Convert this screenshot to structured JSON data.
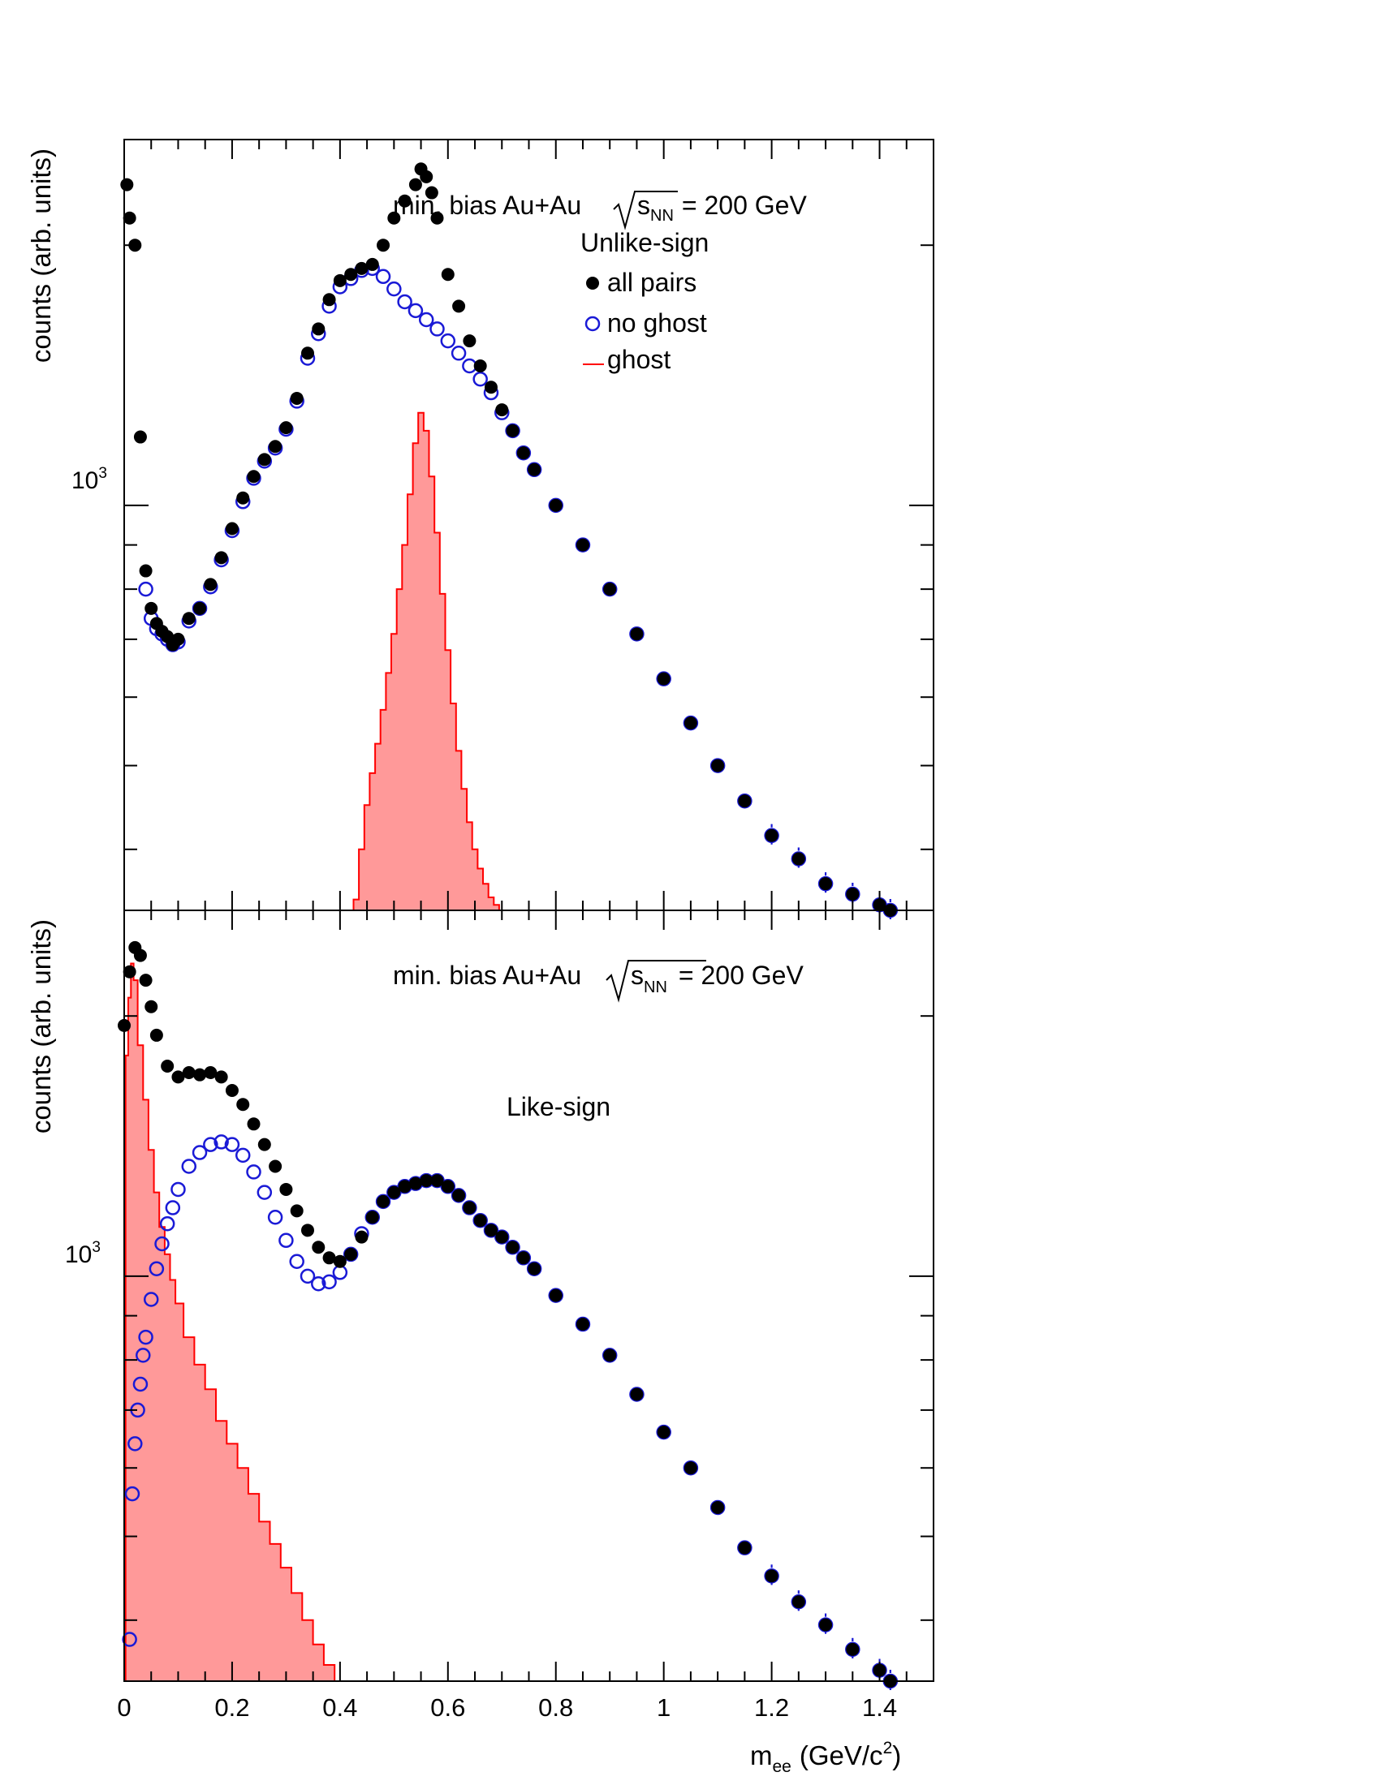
{
  "figure": {
    "xlabel_main": "m",
    "xlabel_sub": "ee",
    "xlabel_unit_pre": "(GeV/c",
    "xlabel_unit_sup": "2",
    "xlabel_unit_post": ")",
    "x_ticks": [
      "0",
      "0.2",
      "0.4",
      "0.6",
      "0.8",
      "1",
      "1.2",
      "1.4"
    ]
  },
  "legend": {
    "all_pairs": "all pairs",
    "no_ghost": "no ghost",
    "ghost": "ghost"
  },
  "colors": {
    "all_pairs": "#000000",
    "no_ghost": "#1a1ad6",
    "ghost_fill": "#ff9999",
    "ghost_line": "#ff0000"
  },
  "chart_data": [
    {
      "type": "scatter",
      "panel": "top",
      "title_pre": "min. bias Au+Au",
      "title_s": "s",
      "title_sub": "NN",
      "title_post": "= 200 GeV",
      "subtitle": "Unlike-sign",
      "ylabel": "counts (arb. units)",
      "y_tick_base": "10",
      "y_tick_exp": "3",
      "yscale": "log",
      "xlim": [
        0,
        1.5
      ],
      "ylim": [
        340,
        2650
      ],
      "legend_position": "top-right",
      "series": [
        {
          "name": "all pairs",
          "marker": "filled-circle",
          "x": [
            0.005,
            0.01,
            0.02,
            0.03,
            0.04,
            0.05,
            0.06,
            0.07,
            0.08,
            0.09,
            0.1,
            0.12,
            0.14,
            0.16,
            0.18,
            0.2,
            0.22,
            0.24,
            0.26,
            0.28,
            0.3,
            0.32,
            0.34,
            0.36,
            0.38,
            0.4,
            0.42,
            0.44,
            0.46,
            0.48,
            0.5,
            0.52,
            0.54,
            0.55,
            0.56,
            0.57,
            0.58,
            0.6,
            0.62,
            0.64,
            0.66,
            0.68,
            0.7,
            0.72,
            0.74,
            0.76,
            0.8,
            0.85,
            0.9,
            0.95,
            1.0,
            1.05,
            1.1,
            1.15,
            1.2,
            1.25,
            1.3,
            1.35,
            1.4,
            1.42
          ],
          "y": [
            2350,
            2150,
            2000,
            1200,
            840,
            760,
            730,
            715,
            705,
            690,
            700,
            740,
            760,
            810,
            870,
            940,
            1020,
            1080,
            1130,
            1170,
            1230,
            1330,
            1500,
            1600,
            1730,
            1820,
            1850,
            1880,
            1900,
            2000,
            2150,
            2250,
            2350,
            2450,
            2400,
            2300,
            2150,
            1850,
            1700,
            1550,
            1450,
            1370,
            1290,
            1220,
            1150,
            1100,
            1000,
            900,
            800,
            710,
            630,
            560,
            500,
            455,
            415,
            390,
            365,
            355,
            345,
            340
          ]
        },
        {
          "name": "no ghost",
          "marker": "open-circle",
          "x": [
            0.04,
            0.05,
            0.06,
            0.07,
            0.08,
            0.09,
            0.1,
            0.12,
            0.14,
            0.16,
            0.18,
            0.2,
            0.22,
            0.24,
            0.26,
            0.28,
            0.3,
            0.32,
            0.34,
            0.36,
            0.38,
            0.4,
            0.42,
            0.44,
            0.46,
            0.48,
            0.5,
            0.52,
            0.54,
            0.56,
            0.58,
            0.6,
            0.62,
            0.64,
            0.66,
            0.68,
            0.7,
            0.72,
            0.74,
            0.76,
            0.8,
            0.85,
            0.9,
            0.95,
            1.0,
            1.05,
            1.1,
            1.15,
            1.2,
            1.25,
            1.3,
            1.35,
            1.4,
            1.42
          ],
          "y": [
            800,
            740,
            720,
            710,
            700,
            690,
            695,
            735,
            760,
            805,
            865,
            935,
            1010,
            1075,
            1125,
            1165,
            1225,
            1320,
            1480,
            1580,
            1700,
            1790,
            1830,
            1870,
            1880,
            1840,
            1780,
            1720,
            1680,
            1640,
            1600,
            1550,
            1500,
            1450,
            1400,
            1350,
            1280,
            1220,
            1150,
            1100,
            1000,
            900,
            800,
            710,
            630,
            560,
            500,
            455,
            415,
            390,
            365,
            355,
            345,
            340
          ]
        },
        {
          "name": "ghost",
          "marker": "filled-histogram",
          "x": [
            0.43,
            0.44,
            0.45,
            0.46,
            0.47,
            0.48,
            0.49,
            0.5,
            0.51,
            0.52,
            0.53,
            0.54,
            0.55,
            0.56,
            0.57,
            0.58,
            0.59,
            0.6,
            0.61,
            0.62,
            0.63,
            0.64,
            0.65,
            0.66,
            0.67,
            0.68,
            0.69
          ],
          "y": [
            350,
            400,
            450,
            490,
            530,
            580,
            640,
            710,
            800,
            900,
            1030,
            1180,
            1280,
            1220,
            1080,
            930,
            790,
            680,
            590,
            520,
            470,
            430,
            400,
            380,
            365,
            352,
            345
          ]
        }
      ]
    },
    {
      "type": "scatter",
      "panel": "bottom",
      "title_pre": "min. bias Au+Au",
      "title_s": "s",
      "title_sub": "NN",
      "title_post": "= 200 GeV",
      "subtitle": "Like-sign",
      "ylabel": "counts (arb. units)",
      "y_tick_base": "10",
      "y_tick_exp": "3",
      "yscale": "log",
      "xlim": [
        0,
        1.5
      ],
      "ylim": [
        340,
        2650
      ],
      "series": [
        {
          "name": "all pairs",
          "marker": "filled-circle",
          "x": [
            0.0,
            0.01,
            0.02,
            0.03,
            0.04,
            0.05,
            0.06,
            0.08,
            0.1,
            0.12,
            0.14,
            0.16,
            0.18,
            0.2,
            0.22,
            0.24,
            0.26,
            0.28,
            0.3,
            0.32,
            0.34,
            0.36,
            0.38,
            0.4,
            0.42,
            0.44,
            0.46,
            0.48,
            0.5,
            0.52,
            0.54,
            0.56,
            0.58,
            0.6,
            0.62,
            0.64,
            0.66,
            0.68,
            0.7,
            0.72,
            0.74,
            0.76,
            0.8,
            0.85,
            0.9,
            0.95,
            1.0,
            1.05,
            1.1,
            1.15,
            1.2,
            1.25,
            1.3,
            1.35,
            1.4,
            1.42
          ],
          "y": [
            1950,
            2250,
            2400,
            2350,
            2200,
            2050,
            1900,
            1750,
            1700,
            1720,
            1710,
            1720,
            1700,
            1640,
            1580,
            1500,
            1420,
            1340,
            1260,
            1190,
            1130,
            1080,
            1050,
            1040,
            1060,
            1110,
            1170,
            1220,
            1250,
            1270,
            1280,
            1290,
            1290,
            1270,
            1240,
            1200,
            1160,
            1130,
            1110,
            1080,
            1050,
            1020,
            950,
            880,
            810,
            730,
            660,
            600,
            540,
            485,
            450,
            420,
            395,
            370,
            350,
            340
          ]
        },
        {
          "name": "no ghost",
          "marker": "open-circle",
          "x": [
            0.01,
            0.015,
            0.02,
            0.025,
            0.03,
            0.035,
            0.04,
            0.05,
            0.06,
            0.07,
            0.08,
            0.09,
            0.1,
            0.12,
            0.14,
            0.16,
            0.18,
            0.2,
            0.22,
            0.24,
            0.26,
            0.28,
            0.3,
            0.32,
            0.34,
            0.36,
            0.38,
            0.4,
            0.42,
            0.44,
            0.46,
            0.48,
            0.5,
            0.52,
            0.54,
            0.56,
            0.58,
            0.6,
            0.62,
            0.64,
            0.66,
            0.68,
            0.7,
            0.72,
            0.74,
            0.76,
            0.8,
            0.85,
            0.9,
            0.95,
            1.0,
            1.05,
            1.1,
            1.15,
            1.2,
            1.25,
            1.3,
            1.35,
            1.4,
            1.42
          ],
          "y": [
            380,
            560,
            640,
            700,
            750,
            810,
            850,
            940,
            1020,
            1090,
            1150,
            1200,
            1260,
            1340,
            1390,
            1420,
            1430,
            1420,
            1380,
            1320,
            1250,
            1170,
            1100,
            1040,
            1000,
            980,
            985,
            1010,
            1060,
            1120,
            1170,
            1220,
            1250,
            1270,
            1280,
            1290,
            1290,
            1270,
            1240,
            1200,
            1160,
            1130,
            1110,
            1080,
            1050,
            1020,
            950,
            880,
            810,
            730,
            660,
            600,
            540,
            485,
            450,
            420,
            395,
            370,
            350,
            340
          ]
        },
        {
          "name": "ghost",
          "marker": "filled-histogram",
          "x": [
            0.005,
            0.01,
            0.015,
            0.02,
            0.03,
            0.04,
            0.05,
            0.06,
            0.07,
            0.08,
            0.09,
            0.1,
            0.12,
            0.14,
            0.16,
            0.18,
            0.2,
            0.22,
            0.24,
            0.26,
            0.28,
            0.3,
            0.32,
            0.34,
            0.36,
            0.38,
            0.4
          ],
          "y": [
            1800,
            2100,
            2300,
            2200,
            1850,
            1600,
            1400,
            1250,
            1140,
            1060,
            990,
            930,
            850,
            790,
            740,
            680,
            640,
            600,
            560,
            520,
            490,
            460,
            430,
            400,
            375,
            355,
            340
          ]
        }
      ]
    }
  ]
}
